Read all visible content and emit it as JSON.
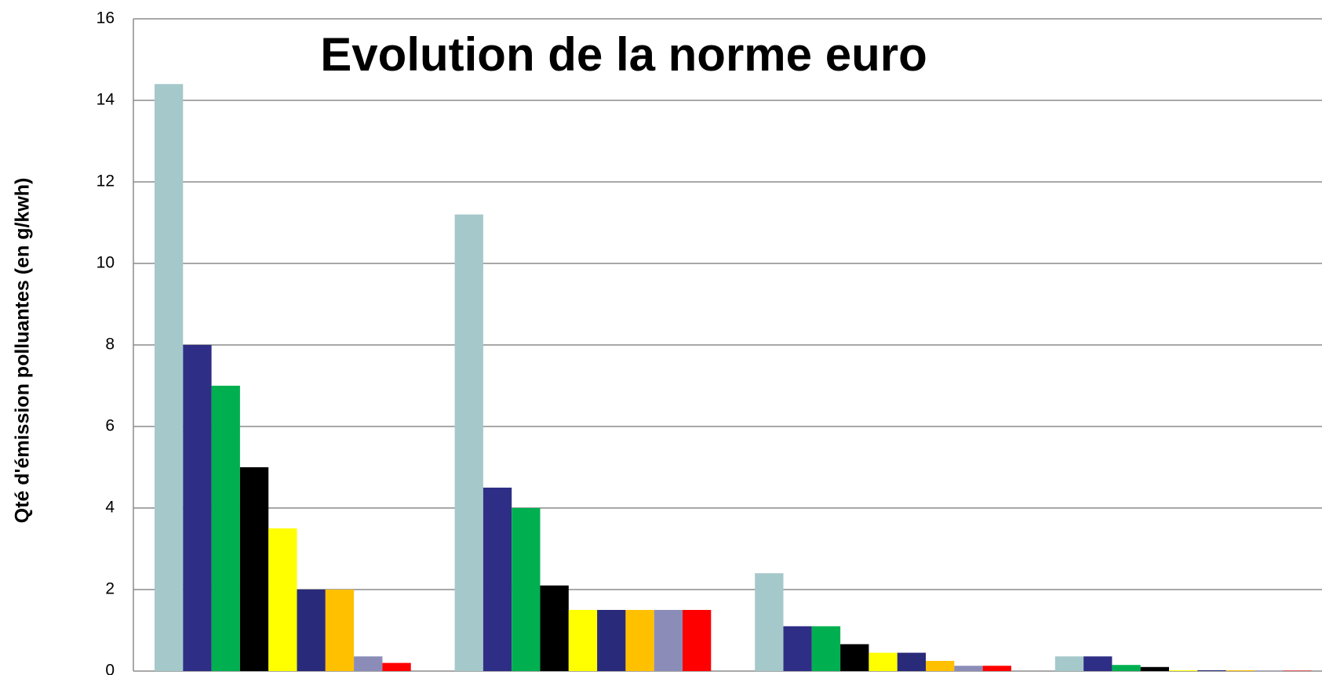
{
  "chart_data": {
    "type": "bar",
    "title": "Evolution de la norme euro",
    "y_label": "Qté d'émission polluantes (en g/kwh)",
    "categories": [
      null,
      null,
      null,
      null
    ],
    "series": [
      {
        "color": "#a5c8ca",
        "values": [
          14.4,
          11.2,
          2.4,
          0.36
        ]
      },
      {
        "color": "#2e2e86",
        "values": [
          8,
          4.5,
          1.1,
          0.36
        ]
      },
      {
        "color": "#00b050",
        "values": [
          7,
          4,
          1.1,
          0.15
        ]
      },
      {
        "color": "#000000",
        "values": [
          5,
          2.1,
          0.66,
          0.1
        ]
      },
      {
        "color": "#ffff00",
        "values": [
          3.5,
          1.5,
          0.45,
          0.02
        ]
      },
      {
        "color": "#2a2a7a",
        "values": [
          2,
          1.5,
          0.45,
          0.02
        ]
      },
      {
        "color": "#ffc000",
        "values": [
          2,
          1.5,
          0.25,
          0.02
        ]
      },
      {
        "color": "#8b8db8",
        "values": [
          0.36,
          1.5,
          0.13,
          0.01
        ]
      },
      {
        "color": "#ff0000",
        "values": [
          0.2,
          1.5,
          0.13,
          0.01
        ]
      }
    ],
    "ylim": [
      0,
      16
    ],
    "yticks": [
      0,
      2,
      4,
      6,
      8,
      10,
      12,
      14,
      16
    ],
    "grid": true
  }
}
